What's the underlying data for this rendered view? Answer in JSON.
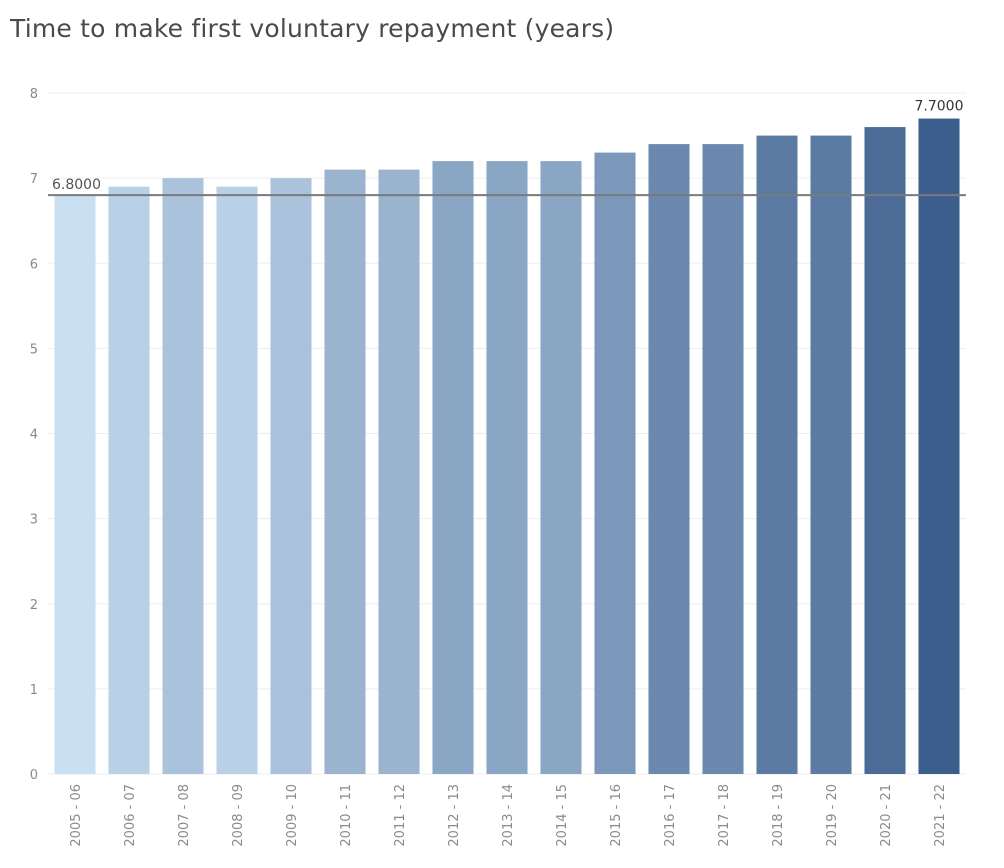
{
  "chart_data": {
    "type": "bar",
    "title": "Time to make first voluntary repayment (years)",
    "xlabel": "",
    "ylabel": "",
    "categories": [
      "2005 - 06",
      "2006 - 07",
      "2007 - 08",
      "2008 - 09",
      "2009 - 10",
      "2010 - 11",
      "2011 - 12",
      "2012 - 13",
      "2013 - 14",
      "2014 - 15",
      "2015 - 16",
      "2016 - 17",
      "2017 - 18",
      "2018 - 19",
      "2019 - 20",
      "2020 - 21",
      "2021 - 22"
    ],
    "values": [
      6.8,
      6.9,
      7.0,
      6.9,
      7.0,
      7.1,
      7.1,
      7.2,
      7.2,
      7.2,
      7.3,
      7.4,
      7.4,
      7.5,
      7.5,
      7.6,
      7.7
    ],
    "ylim": [
      0,
      8.2
    ],
    "yticks": [
      0,
      1,
      2,
      3,
      4,
      5,
      6,
      7,
      8
    ],
    "grid": true,
    "legend": "none",
    "reference_line": {
      "value": 6.8,
      "label": "6.8000",
      "color": "#7a7a7a"
    },
    "max_label": "7.7000",
    "color_scale": {
      "low": "#c9dff2",
      "high": "#3c5e8c"
    }
  }
}
